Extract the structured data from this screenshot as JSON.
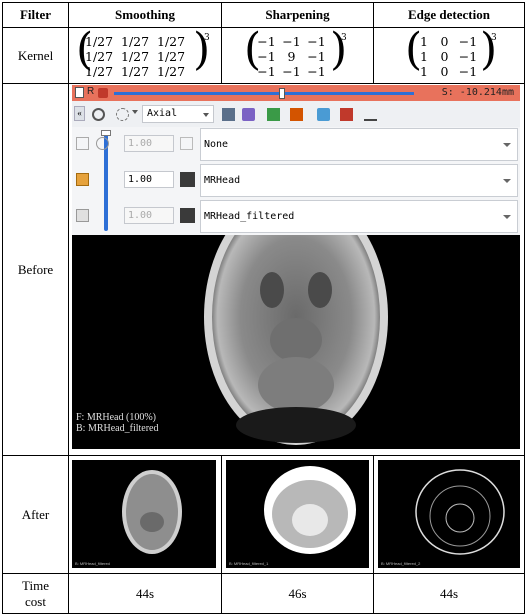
{
  "headers": {
    "col1": "Filter",
    "col2": "Smoothing",
    "col3": "Sharpening",
    "col4": "Edge detection"
  },
  "rows": {
    "kernel": "Kernel",
    "before": "Before",
    "after": "After",
    "time": "Time cost"
  },
  "kernels": {
    "smoothing": [
      [
        "1/27",
        "1/27",
        "1/27"
      ],
      [
        "1/27",
        "1/27",
        "1/27"
      ],
      [
        "1/27",
        "1/27",
        "1/27"
      ]
    ],
    "sharpening": [
      [
        "−1",
        "−1",
        "−1"
      ],
      [
        "−1",
        "9",
        "−1"
      ],
      [
        "−1",
        "−1",
        "−1"
      ]
    ],
    "edge": [
      [
        "1",
        "0",
        "−1"
      ],
      [
        "1",
        "0",
        "−1"
      ],
      [
        "1",
        "0",
        "−1"
      ]
    ],
    "exponent": "3"
  },
  "slicer": {
    "slice_letter": "R",
    "offset": "S: -10.214mm",
    "view": "Axial",
    "foreground_opacity": "1.00",
    "label_opacity": "1.00",
    "background_opacity": "1.00",
    "label_volume": "None",
    "foreground_volume": "MRHead",
    "background_volume": "MRHead_filtered",
    "overlay_f": "F: MRHead (100%)",
    "overlay_b": "B: MRHead_filtered",
    "slider_fraction": 0.56,
    "colors": {
      "slice_red": "#e8725c",
      "slider_blue": "#2d6fd6"
    }
  },
  "after_captions": {
    "smoothing": "B: MRHead_filtered",
    "sharpening": "B: MRHead_filtered_1",
    "edge": "B: MRHead_filtered_2"
  },
  "time_cost": {
    "smoothing": "44s",
    "sharpening": "46s",
    "edge": "44s"
  }
}
